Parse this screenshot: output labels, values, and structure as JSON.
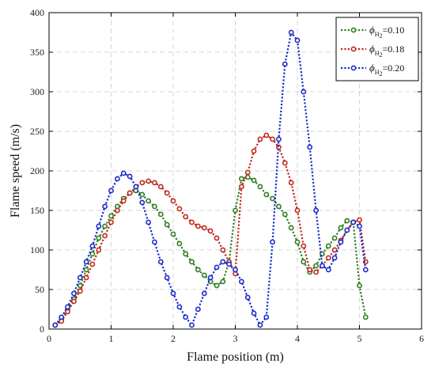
{
  "chart_data": {
    "type": "line",
    "xlabel": "Flame position (m)",
    "ylabel": "Flame speed (m/s)",
    "xlim": [
      0,
      6
    ],
    "ylim": [
      0,
      400
    ],
    "xticks": [
      "0",
      "1",
      "2",
      "3",
      "4",
      "5",
      "6"
    ],
    "yticks": [
      "0",
      "50",
      "100",
      "150",
      "200",
      "250",
      "300",
      "350",
      "400"
    ],
    "grid": true,
    "legend_position": "top-right",
    "series": [
      {
        "name": "ϕH2=0.10",
        "legend": {
          "symbol": "ϕ",
          "sub": "H",
          "subsub": "2",
          "value": "=0.10"
        },
        "color": "#2e7d1f",
        "x": [
          0.1,
          0.2,
          0.3,
          0.4,
          0.5,
          0.6,
          0.7,
          0.8,
          0.9,
          1.0,
          1.1,
          1.2,
          1.3,
          1.4,
          1.5,
          1.6,
          1.7,
          1.8,
          1.9,
          2.0,
          2.1,
          2.2,
          2.3,
          2.4,
          2.5,
          2.6,
          2.7,
          2.8,
          2.9,
          3.0,
          3.1,
          3.2,
          3.3,
          3.4,
          3.5,
          3.6,
          3.7,
          3.8,
          3.9,
          4.0,
          4.1,
          4.2,
          4.3,
          4.4,
          4.5,
          4.6,
          4.7,
          4.8,
          4.9,
          5.0,
          5.1
        ],
        "y": [
          5,
          12,
          25,
          38,
          55,
          75,
          95,
          115,
          130,
          143,
          155,
          165,
          172,
          175,
          170,
          162,
          155,
          145,
          132,
          120,
          108,
          95,
          85,
          75,
          68,
          60,
          55,
          60,
          85,
          150,
          190,
          192,
          188,
          180,
          170,
          165,
          155,
          145,
          128,
          110,
          85,
          72,
          80,
          95,
          105,
          115,
          128,
          137,
          135,
          55,
          15
        ]
      },
      {
        "name": "ϕH2=0.18",
        "legend": {
          "symbol": "ϕ",
          "sub": "H",
          "subsub": "2",
          "value": "=0.18"
        },
        "color": "#c0281a",
        "x": [
          0.1,
          0.2,
          0.3,
          0.4,
          0.5,
          0.6,
          0.7,
          0.8,
          0.9,
          1.0,
          1.1,
          1.2,
          1.3,
          1.4,
          1.5,
          1.6,
          1.7,
          1.8,
          1.9,
          2.0,
          2.1,
          2.2,
          2.3,
          2.4,
          2.5,
          2.6,
          2.7,
          2.8,
          2.9,
          3.0,
          3.1,
          3.2,
          3.3,
          3.4,
          3.5,
          3.6,
          3.7,
          3.8,
          3.9,
          4.0,
          4.1,
          4.2,
          4.3,
          4.4,
          4.5,
          4.6,
          4.7,
          4.8,
          4.9,
          5.0,
          5.1
        ],
        "y": [
          5,
          10,
          22,
          35,
          48,
          65,
          82,
          100,
          118,
          135,
          150,
          162,
          172,
          180,
          185,
          187,
          185,
          180,
          172,
          162,
          152,
          142,
          135,
          130,
          128,
          124,
          115,
          100,
          85,
          70,
          180,
          198,
          225,
          240,
          245,
          240,
          230,
          210,
          185,
          150,
          105,
          75,
          72,
          80,
          90,
          100,
          112,
          125,
          135,
          138,
          85
        ]
      },
      {
        "name": "ϕH2=0.20",
        "legend": {
          "symbol": "ϕ",
          "sub": "H",
          "subsub": "2",
          "value": "=0.20"
        },
        "color": "#1a2cc9",
        "x": [
          0.1,
          0.2,
          0.3,
          0.4,
          0.5,
          0.6,
          0.7,
          0.8,
          0.9,
          1.0,
          1.1,
          1.2,
          1.3,
          1.4,
          1.5,
          1.6,
          1.7,
          1.8,
          1.9,
          2.0,
          2.1,
          2.2,
          2.3,
          2.4,
          2.5,
          2.6,
          2.7,
          2.8,
          2.9,
          3.0,
          3.1,
          3.2,
          3.3,
          3.4,
          3.5,
          3.6,
          3.7,
          3.8,
          3.9,
          4.0,
          4.1,
          4.2,
          4.3,
          4.4,
          4.5,
          4.6,
          4.7,
          4.8,
          4.9,
          5.0,
          5.1
        ],
        "y": [
          5,
          15,
          28,
          45,
          65,
          85,
          105,
          130,
          155,
          175,
          190,
          197,
          193,
          180,
          160,
          135,
          110,
          85,
          65,
          45,
          28,
          15,
          5,
          25,
          45,
          65,
          78,
          85,
          82,
          75,
          60,
          40,
          20,
          5,
          15,
          110,
          240,
          335,
          375,
          365,
          300,
          230,
          150,
          80,
          75,
          90,
          110,
          125,
          135,
          130,
          75
        ]
      }
    ]
  }
}
